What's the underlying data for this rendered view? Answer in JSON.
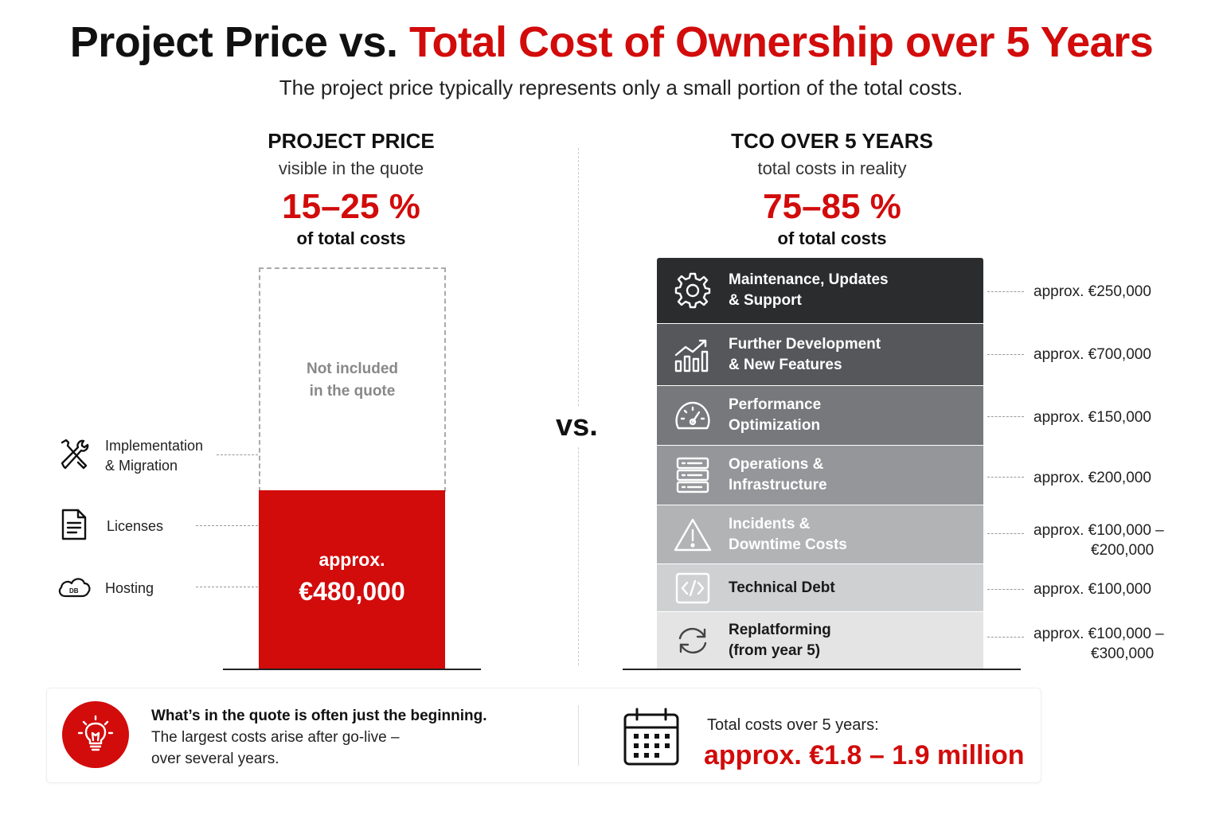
{
  "title": {
    "part1": "Project Price vs.",
    "part2": "Total Cost of Ownership over 5 Years"
  },
  "subtitle": "The project price typically represents only a small portion of the total costs.",
  "colors": {
    "accent": "#d20b0b",
    "dark": "#111111"
  },
  "left": {
    "heading": "PROJECT PRICE",
    "sub": "visible in the quote",
    "pct": "15–25 %",
    "of": "of total costs",
    "not_included_1": "Not included",
    "not_included_2": "in the quote",
    "price_label": "approx.",
    "price_value": "€480,000",
    "items": [
      {
        "icon": "tools-icon",
        "label_1": "Implementation",
        "label_2": "& Migration"
      },
      {
        "icon": "document-icon",
        "label_1": "Licenses",
        "label_2": ""
      },
      {
        "icon": "cloud-db-icon",
        "label_1": "Hosting",
        "label_2": ""
      }
    ]
  },
  "vs": "vs.",
  "right": {
    "heading": "TCO OVER 5 YEARS",
    "sub": "total costs in reality",
    "pct": "75–85 %",
    "of": "of total costs",
    "rows": [
      {
        "icon": "gear-icon",
        "label_1": "Maintenance, Updates",
        "label_2": "& Support",
        "cost_1": "approx. €250,000",
        "cost_2": ""
      },
      {
        "icon": "growth-chart-icon",
        "label_1": "Further Development",
        "label_2": "& New Features",
        "cost_1": "approx. €700,000",
        "cost_2": ""
      },
      {
        "icon": "speedometer-icon",
        "label_1": "Performance",
        "label_2": "Optimization",
        "cost_1": "approx. €150,000",
        "cost_2": ""
      },
      {
        "icon": "server-icon",
        "label_1": "Operations &",
        "label_2": "Infrastructure",
        "cost_1": "approx. €200,000",
        "cost_2": ""
      },
      {
        "icon": "warning-icon",
        "label_1": "Incidents &",
        "label_2": "Downtime Costs",
        "cost_1": "approx. €100,000 –",
        "cost_2": "€200,000"
      },
      {
        "icon": "code-icon",
        "label_1": "Technical Debt",
        "label_2": "",
        "cost_1": "approx. €100,000",
        "cost_2": ""
      },
      {
        "icon": "refresh-icon",
        "label_1": "Replatforming",
        "label_2": "(from year 5)",
        "cost_1": "approx. €100,000 –",
        "cost_2": "€300,000"
      }
    ]
  },
  "footer": {
    "bold": "What’s in the quote is often just the beginning.",
    "line2": "The largest costs arise after go-live –",
    "line3": "over several years.",
    "total_label": "Total costs over 5 years:",
    "total_value": "approx. €1.8 – 1.9 million"
  }
}
